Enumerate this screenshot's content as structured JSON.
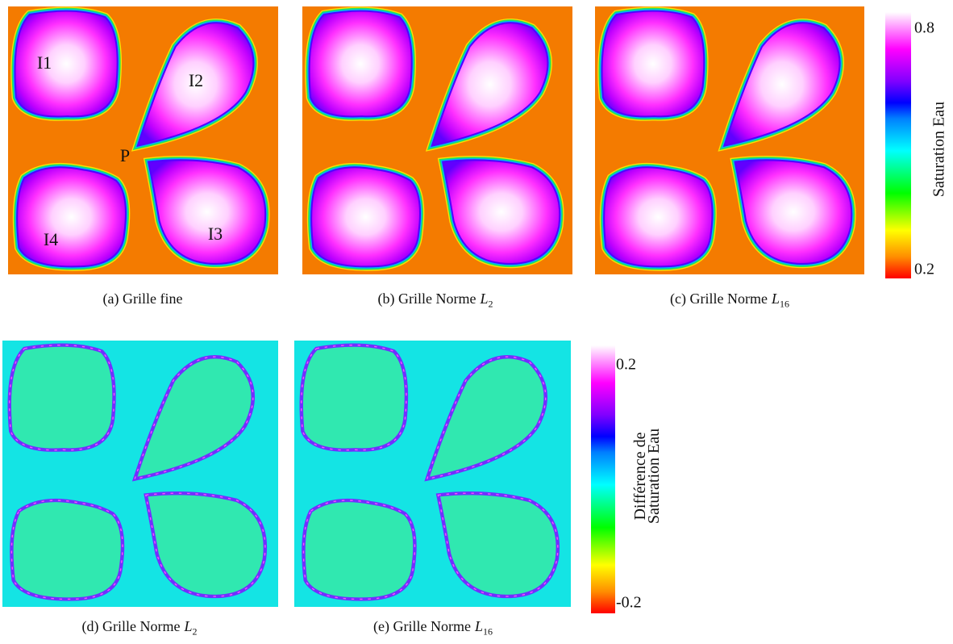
{
  "panels": [
    {
      "caption": {
        "label": "(a) Grille fine"
      },
      "annotations": [
        "I1",
        "I2",
        "P",
        "I3",
        "I4"
      ]
    },
    {
      "caption": {
        "label": "(b) Grille Norme",
        "math": "L",
        "sub": "2"
      }
    },
    {
      "caption": {
        "label": "(c) Grille Norme",
        "math": "L",
        "sub": "16"
      }
    },
    {
      "caption": {
        "label": "(d) Grille Norme",
        "math": "L",
        "sub": "2"
      }
    },
    {
      "caption": {
        "label": "(e) Grille Norme",
        "math": "L",
        "sub": "16"
      }
    }
  ],
  "colorbars": [
    {
      "title": [
        "Saturation Eau"
      ],
      "ticks": [
        "0.8",
        "0.2"
      ]
    },
    {
      "title": [
        "Différence de",
        "Saturation Eau"
      ],
      "ticks": [
        "0.2",
        "-0.2"
      ]
    }
  ]
}
